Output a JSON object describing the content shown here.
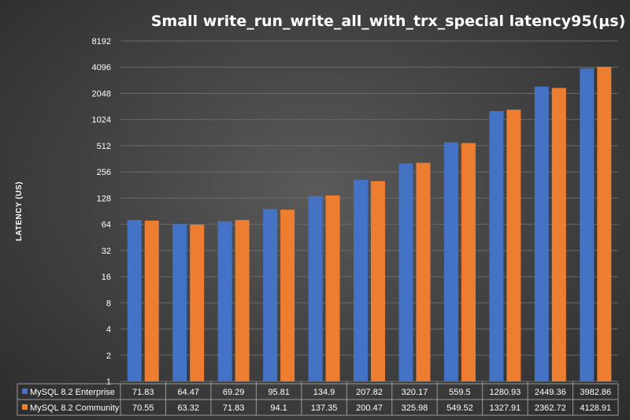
{
  "chart_data": {
    "type": "bar",
    "title": "Small  write_run_write_all_with_trx_special   latency95(μs)",
    "ylabel": "LATENCY (US)",
    "yscale": "log2",
    "ylim": [
      1,
      8192
    ],
    "yticks": [
      "1",
      "2",
      "4",
      "8",
      "16",
      "32",
      "64",
      "128",
      "256",
      "512",
      "1024",
      "2048",
      "4096",
      "8192"
    ],
    "grid": true,
    "legend": "bottom-table",
    "series": [
      {
        "name": "MySQL 8.2 Enterprise",
        "color": "#4472C4",
        "values": [
          71.83,
          64.47,
          69.29,
          95.81,
          134.9,
          207.82,
          320.17,
          559.5,
          1280.93,
          2449.36,
          3982.86
        ],
        "labels": [
          "71.83",
          "64.47",
          "69.29",
          "95.81",
          "134.9",
          "207.82",
          "320.17",
          "559.5",
          "1280.93",
          "2449.36",
          "3982.86"
        ]
      },
      {
        "name": "MySQL 8.2 Community",
        "color": "#ED7D31",
        "values": [
          70.55,
          63.32,
          71.83,
          94.1,
          137.35,
          200.47,
          325.98,
          549.52,
          1327.91,
          2362.72,
          4128.91
        ],
        "labels": [
          "70.55",
          "63.32",
          "71.83",
          "94.1",
          "137.35",
          "200.47",
          "325.98",
          "549.52",
          "1327.91",
          "2362.72",
          "4128.91"
        ]
      }
    ]
  }
}
